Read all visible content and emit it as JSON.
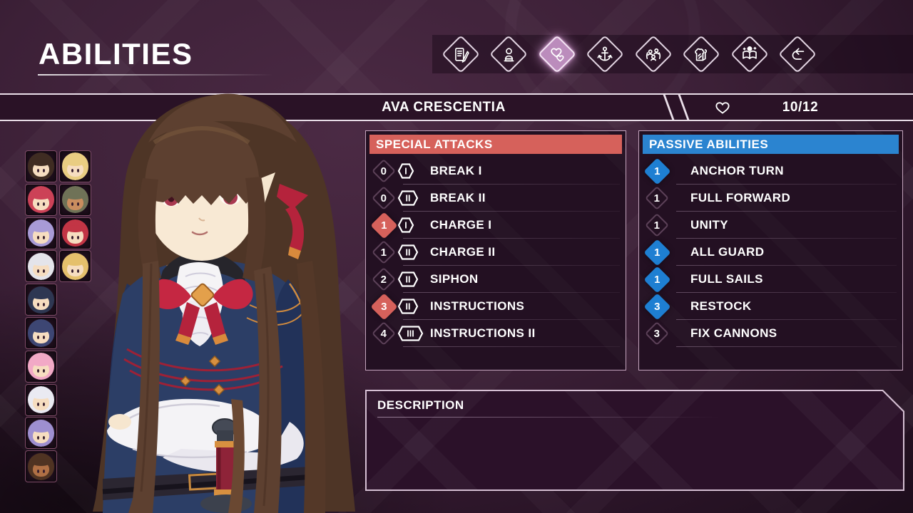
{
  "app": {
    "title": "ABILITIES"
  },
  "tabs": {
    "items": [
      {
        "icon": "journal-icon",
        "selected": false
      },
      {
        "icon": "bust-icon",
        "selected": false
      },
      {
        "icon": "hearts-icon",
        "selected": true
      },
      {
        "icon": "anchor-icon",
        "selected": false
      },
      {
        "icon": "crew-icon",
        "selected": false
      },
      {
        "icon": "bread-icon",
        "selected": false
      },
      {
        "icon": "book-icon",
        "selected": false
      },
      {
        "icon": "return-icon",
        "selected": false
      }
    ]
  },
  "character_bar": {
    "name": "AVA CRESCENTIA",
    "heart_icon": "heart-icon",
    "count": "10/12"
  },
  "special_attacks": {
    "title": "SPECIAL ATTACKS",
    "items": [
      {
        "count": "0",
        "cost": "I",
        "name": "BREAK I",
        "highlighted": false
      },
      {
        "count": "0",
        "cost": "II",
        "name": "BREAK II",
        "highlighted": false
      },
      {
        "count": "1",
        "cost": "I",
        "name": "CHARGE I",
        "highlighted": true
      },
      {
        "count": "1",
        "cost": "II",
        "name": "CHARGE II",
        "highlighted": false
      },
      {
        "count": "2",
        "cost": "II",
        "name": "SIPHON",
        "highlighted": false
      },
      {
        "count": "3",
        "cost": "II",
        "name": "INSTRUCTIONS",
        "highlighted": true
      },
      {
        "count": "4",
        "cost": "III",
        "name": "INSTRUCTIONS II",
        "highlighted": false
      }
    ]
  },
  "passive_abilities": {
    "title": "PASSIVE ABILITIES",
    "items": [
      {
        "count": "1",
        "name": "ANCHOR TURN",
        "highlighted": true
      },
      {
        "count": "1",
        "name": "FULL FORWARD",
        "highlighted": false
      },
      {
        "count": "1",
        "name": "UNITY",
        "highlighted": false
      },
      {
        "count": "1",
        "name": "ALL GUARD",
        "highlighted": true
      },
      {
        "count": "1",
        "name": "FULL SAILS",
        "highlighted": true
      },
      {
        "count": "3",
        "name": "RESTOCK",
        "highlighted": true
      },
      {
        "count": "3",
        "name": "FIX CANNONS",
        "highlighted": false
      }
    ]
  },
  "description": {
    "title": "DESCRIPTION",
    "body": ""
  },
  "roster": {
    "portraits": [
      {
        "col": 1,
        "row": 1,
        "hair": "#3f2c22",
        "skin": "#f6ddc0"
      },
      {
        "col": 2,
        "row": 1,
        "hair": "#e9cd82",
        "skin": "#f6ddc0"
      },
      {
        "col": 1,
        "row": 2,
        "hair": "#cc4257",
        "skin": "#f6ddc0"
      },
      {
        "col": 2,
        "row": 2,
        "hair": "#6f7257",
        "skin": "#c98d5f"
      },
      {
        "col": 1,
        "row": 3,
        "hair": "#a89bd6",
        "skin": "#f6ddc0"
      },
      {
        "col": 2,
        "row": 3,
        "hair": "#c23545",
        "skin": "#f6ddc0"
      },
      {
        "col": 1,
        "row": 4,
        "hair": "#e4e4ea",
        "skin": "#f6ddc0"
      },
      {
        "col": 2,
        "row": 4,
        "hair": "#e5c06c",
        "skin": "#f6ddc0"
      },
      {
        "col": 1,
        "row": 5,
        "hair": "#2e3752",
        "skin": "#f6ddc0"
      },
      {
        "col": 1,
        "row": 6,
        "hair": "#3d4673",
        "skin": "#f6ddc0"
      },
      {
        "col": 1,
        "row": 7,
        "hair": "#f2a9c6",
        "skin": "#f6ddc0"
      },
      {
        "col": 1,
        "row": 8,
        "hair": "#eaeaf2",
        "skin": "#f6ddc0"
      },
      {
        "col": 1,
        "row": 9,
        "hair": "#9e8fd0",
        "skin": "#f6ddc0"
      },
      {
        "col": 1,
        "row": 10,
        "hair": "#4f3322",
        "skin": "#b07045"
      }
    ]
  },
  "colors": {
    "accent_red": "#d6615b",
    "accent_blue": "#2b84d0",
    "diamond_red": "#d6615b",
    "diamond_blue": "#1e7fd2",
    "tab_selected": "#bb8cbc"
  }
}
